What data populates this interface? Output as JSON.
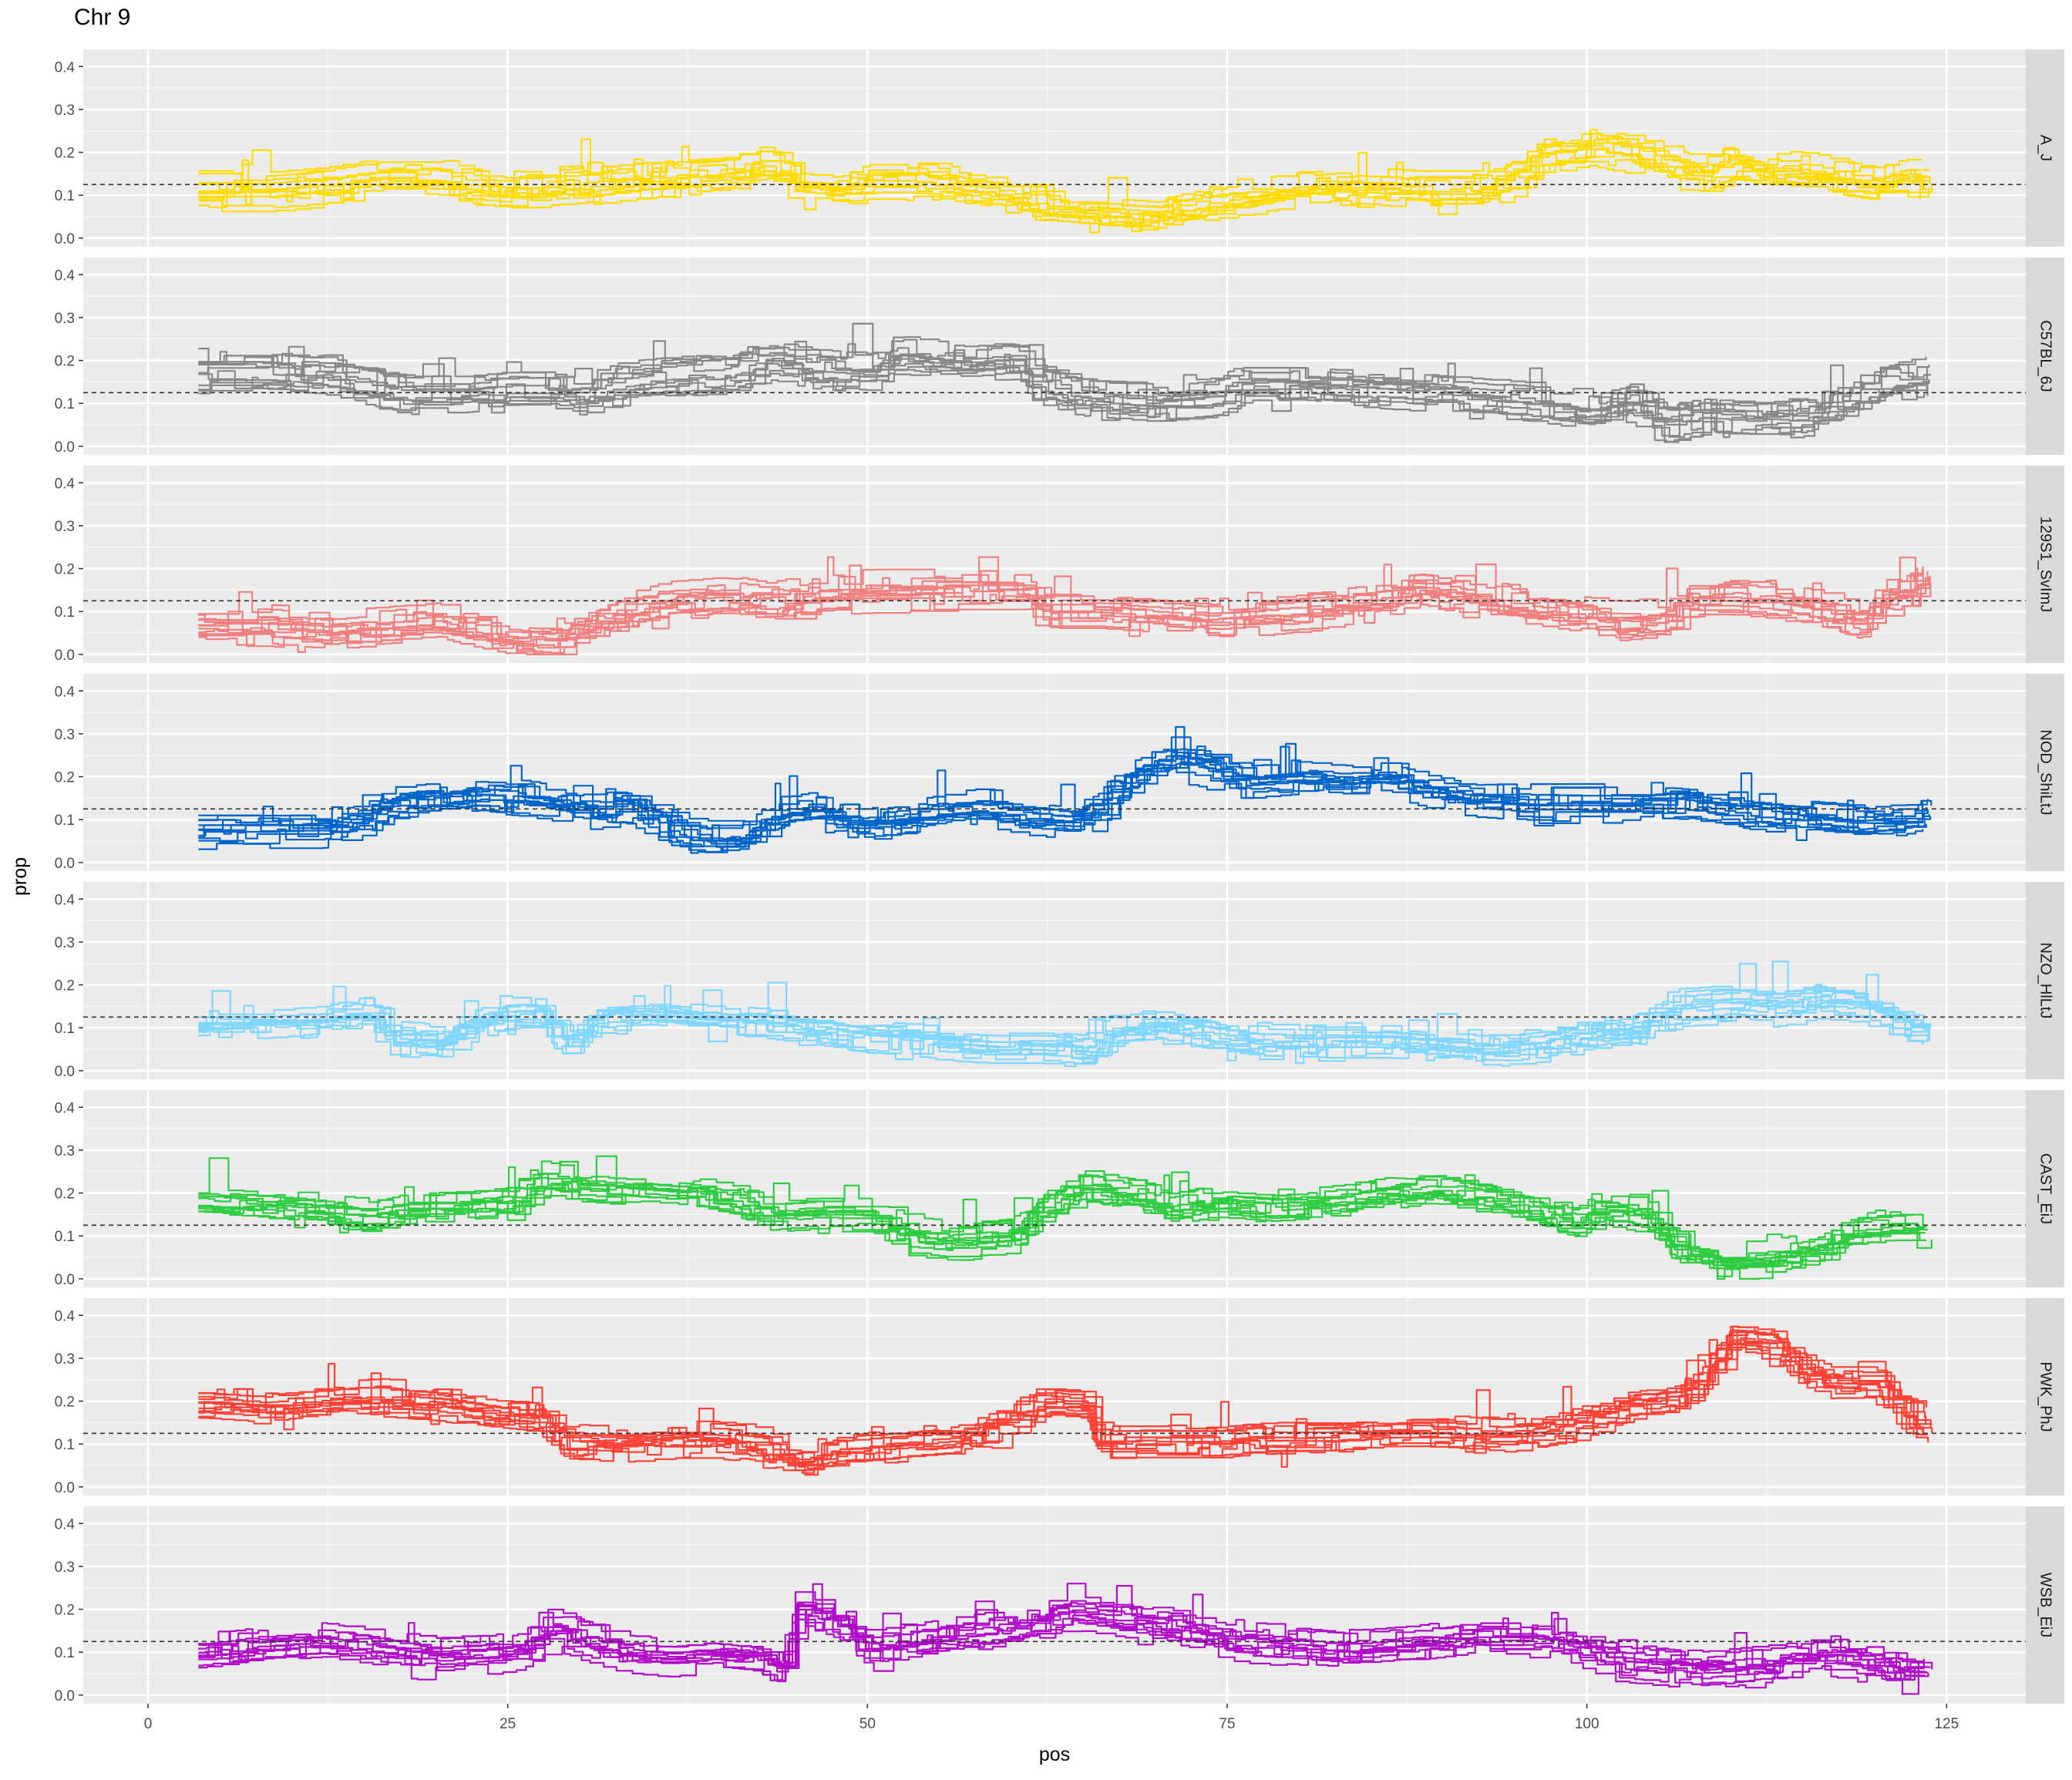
{
  "chart_data": {
    "type": "line",
    "title": "Chr 9",
    "xlabel": "pos",
    "ylabel": "prop",
    "xlim": [
      -4.5,
      130.5
    ],
    "ylim": [
      -0.02,
      0.44
    ],
    "x_ticks": [
      0,
      25,
      50,
      75,
      100,
      125
    ],
    "x_tick_labels": [
      "0",
      "25",
      "50",
      "75",
      "100",
      "125"
    ],
    "y_ticks": [
      0.0,
      0.1,
      0.2,
      0.3,
      0.4
    ],
    "y_tick_labels": [
      "0.0",
      "0.1",
      "0.2",
      "0.3",
      "0.4"
    ],
    "reference_line": 0.125,
    "grid": true,
    "lines_per_panel": 12,
    "panels": [
      {
        "strip": "A_J",
        "color": "#FFDC00",
        "profile": [
          [
            3.5,
            0.11
          ],
          [
            8,
            0.11
          ],
          [
            12,
            0.12
          ],
          [
            16,
            0.14
          ],
          [
            20,
            0.14
          ],
          [
            22,
            0.12
          ],
          [
            26,
            0.11
          ],
          [
            30,
            0.12
          ],
          [
            35,
            0.14
          ],
          [
            40,
            0.15
          ],
          [
            43,
            0.17
          ],
          [
            45,
            0.12
          ],
          [
            48,
            0.11
          ],
          [
            50,
            0.14
          ],
          [
            53,
            0.14
          ],
          [
            56,
            0.12
          ],
          [
            60,
            0.1
          ],
          [
            62,
            0.07
          ],
          [
            66,
            0.06
          ],
          [
            70,
            0.05
          ],
          [
            72,
            0.07
          ],
          [
            76,
            0.09
          ],
          [
            80,
            0.11
          ],
          [
            84,
            0.12
          ],
          [
            88,
            0.11
          ],
          [
            92,
            0.11
          ],
          [
            95,
            0.15
          ],
          [
            97,
            0.2
          ],
          [
            100,
            0.22
          ],
          [
            103,
            0.2
          ],
          [
            106,
            0.17
          ],
          [
            108,
            0.15
          ],
          [
            110,
            0.18
          ],
          [
            113,
            0.16
          ],
          [
            116,
            0.15
          ],
          [
            118,
            0.13
          ],
          [
            120,
            0.12
          ],
          [
            122,
            0.14
          ],
          [
            124,
            0.14
          ]
        ]
      },
      {
        "strip": "C57BL_6J",
        "color": "#888888",
        "profile": [
          [
            3.5,
            0.17
          ],
          [
            8,
            0.17
          ],
          [
            12,
            0.16
          ],
          [
            15,
            0.14
          ],
          [
            18,
            0.12
          ],
          [
            22,
            0.12
          ],
          [
            25,
            0.13
          ],
          [
            28,
            0.13
          ],
          [
            30,
            0.12
          ],
          [
            33,
            0.15
          ],
          [
            36,
            0.16
          ],
          [
            40,
            0.17
          ],
          [
            43,
            0.2
          ],
          [
            46,
            0.18
          ],
          [
            50,
            0.17
          ],
          [
            52,
            0.21
          ],
          [
            54,
            0.2
          ],
          [
            57,
            0.19
          ],
          [
            60,
            0.2
          ],
          [
            62,
            0.14
          ],
          [
            64,
            0.12
          ],
          [
            66,
            0.11
          ],
          [
            70,
            0.1
          ],
          [
            74,
            0.11
          ],
          [
            76,
            0.14
          ],
          [
            80,
            0.14
          ],
          [
            84,
            0.13
          ],
          [
            88,
            0.12
          ],
          [
            92,
            0.11
          ],
          [
            96,
            0.1
          ],
          [
            100,
            0.08
          ],
          [
            103,
            0.1
          ],
          [
            105,
            0.05
          ],
          [
            108,
            0.07
          ],
          [
            112,
            0.06
          ],
          [
            115,
            0.07
          ],
          [
            118,
            0.1
          ],
          [
            121,
            0.14
          ],
          [
            124,
            0.16
          ]
        ]
      },
      {
        "strip": "129S1_SvImJ",
        "color": "#F08080",
        "profile": [
          [
            3.5,
            0.07
          ],
          [
            8,
            0.07
          ],
          [
            12,
            0.06
          ],
          [
            16,
            0.07
          ],
          [
            20,
            0.08
          ],
          [
            22,
            0.06
          ],
          [
            25,
            0.04
          ],
          [
            28,
            0.03
          ],
          [
            30,
            0.06
          ],
          [
            33,
            0.1
          ],
          [
            36,
            0.13
          ],
          [
            40,
            0.14
          ],
          [
            43,
            0.12
          ],
          [
            46,
            0.14
          ],
          [
            50,
            0.15
          ],
          [
            54,
            0.15
          ],
          [
            58,
            0.15
          ],
          [
            61,
            0.15
          ],
          [
            62,
            0.11
          ],
          [
            66,
            0.11
          ],
          [
            70,
            0.1
          ],
          [
            74,
            0.09
          ],
          [
            78,
            0.1
          ],
          [
            82,
            0.11
          ],
          [
            86,
            0.13
          ],
          [
            88,
            0.16
          ],
          [
            91,
            0.14
          ],
          [
            94,
            0.12
          ],
          [
            98,
            0.1
          ],
          [
            102,
            0.08
          ],
          [
            105,
            0.09
          ],
          [
            107,
            0.14
          ],
          [
            110,
            0.14
          ],
          [
            113,
            0.13
          ],
          [
            116,
            0.11
          ],
          [
            119,
            0.08
          ],
          [
            121,
            0.14
          ],
          [
            123,
            0.17
          ],
          [
            124,
            0.2
          ]
        ]
      },
      {
        "strip": "NOD_ShiLtJ",
        "color": "#0064C9",
        "profile": [
          [
            3.5,
            0.08
          ],
          [
            8,
            0.08
          ],
          [
            12,
            0.08
          ],
          [
            15,
            0.1
          ],
          [
            17,
            0.14
          ],
          [
            20,
            0.15
          ],
          [
            23,
            0.16
          ],
          [
            26,
            0.15
          ],
          [
            28,
            0.14
          ],
          [
            31,
            0.12
          ],
          [
            33,
            0.14
          ],
          [
            35,
            0.1
          ],
          [
            38,
            0.06
          ],
          [
            41,
            0.06
          ],
          [
            43,
            0.11
          ],
          [
            46,
            0.13
          ],
          [
            49,
            0.09
          ],
          [
            52,
            0.1
          ],
          [
            55,
            0.12
          ],
          [
            58,
            0.13
          ],
          [
            61,
            0.11
          ],
          [
            64,
            0.1
          ],
          [
            66,
            0.13
          ],
          [
            68,
            0.2
          ],
          [
            71,
            0.24
          ],
          [
            73,
            0.23
          ],
          [
            76,
            0.19
          ],
          [
            80,
            0.2
          ],
          [
            83,
            0.19
          ],
          [
            86,
            0.2
          ],
          [
            89,
            0.17
          ],
          [
            92,
            0.15
          ],
          [
            96,
            0.14
          ],
          [
            100,
            0.14
          ],
          [
            103,
            0.14
          ],
          [
            106,
            0.14
          ],
          [
            109,
            0.13
          ],
          [
            112,
            0.11
          ],
          [
            116,
            0.1
          ],
          [
            119,
            0.09
          ],
          [
            122,
            0.1
          ],
          [
            124,
            0.12
          ]
        ]
      },
      {
        "strip": "NZO_HlLtJ",
        "color": "#7FD6FF",
        "profile": [
          [
            3.5,
            0.11
          ],
          [
            8,
            0.11
          ],
          [
            12,
            0.12
          ],
          [
            15,
            0.14
          ],
          [
            17,
            0.08
          ],
          [
            20,
            0.07
          ],
          [
            22,
            0.1
          ],
          [
            25,
            0.14
          ],
          [
            27,
            0.14
          ],
          [
            29,
            0.07
          ],
          [
            31,
            0.13
          ],
          [
            34,
            0.14
          ],
          [
            38,
            0.13
          ],
          [
            42,
            0.12
          ],
          [
            46,
            0.1
          ],
          [
            50,
            0.08
          ],
          [
            54,
            0.07
          ],
          [
            58,
            0.06
          ],
          [
            62,
            0.06
          ],
          [
            65,
            0.05
          ],
          [
            67,
            0.1
          ],
          [
            70,
            0.11
          ],
          [
            74,
            0.09
          ],
          [
            78,
            0.07
          ],
          [
            82,
            0.07
          ],
          [
            86,
            0.07
          ],
          [
            90,
            0.06
          ],
          [
            94,
            0.05
          ],
          [
            97,
            0.06
          ],
          [
            100,
            0.09
          ],
          [
            103,
            0.1
          ],
          [
            106,
            0.15
          ],
          [
            110,
            0.16
          ],
          [
            113,
            0.15
          ],
          [
            116,
            0.17
          ],
          [
            119,
            0.16
          ],
          [
            122,
            0.12
          ],
          [
            124,
            0.1
          ]
        ]
      },
      {
        "strip": "CAST_EiJ",
        "color": "#2ECC40",
        "profile": [
          [
            3.5,
            0.18
          ],
          [
            8,
            0.17
          ],
          [
            12,
            0.16
          ],
          [
            15,
            0.15
          ],
          [
            18,
            0.17
          ],
          [
            22,
            0.17
          ],
          [
            25,
            0.18
          ],
          [
            27,
            0.24
          ],
          [
            30,
            0.22
          ],
          [
            34,
            0.21
          ],
          [
            38,
            0.2
          ],
          [
            41,
            0.18
          ],
          [
            43,
            0.14
          ],
          [
            46,
            0.15
          ],
          [
            50,
            0.15
          ],
          [
            53,
            0.1
          ],
          [
            56,
            0.09
          ],
          [
            60,
            0.1
          ],
          [
            62,
            0.17
          ],
          [
            65,
            0.22
          ],
          [
            68,
            0.2
          ],
          [
            71,
            0.16
          ],
          [
            74,
            0.18
          ],
          [
            78,
            0.17
          ],
          [
            82,
            0.18
          ],
          [
            86,
            0.2
          ],
          [
            89,
            0.22
          ],
          [
            92,
            0.2
          ],
          [
            96,
            0.17
          ],
          [
            99,
            0.13
          ],
          [
            101,
            0.17
          ],
          [
            104,
            0.15
          ],
          [
            106,
            0.08
          ],
          [
            109,
            0.04
          ],
          [
            113,
            0.05
          ],
          [
            116,
            0.07
          ],
          [
            118,
            0.11
          ],
          [
            121,
            0.12
          ],
          [
            124,
            0.12
          ]
        ]
      },
      {
        "strip": "PWK_PhJ",
        "color": "#FF4136",
        "profile": [
          [
            3.5,
            0.19
          ],
          [
            8,
            0.18
          ],
          [
            12,
            0.19
          ],
          [
            16,
            0.2
          ],
          [
            20,
            0.19
          ],
          [
            24,
            0.17
          ],
          [
            27,
            0.16
          ],
          [
            29,
            0.1
          ],
          [
            33,
            0.09
          ],
          [
            36,
            0.1
          ],
          [
            39,
            0.1
          ],
          [
            42,
            0.09
          ],
          [
            45,
            0.05
          ],
          [
            48,
            0.08
          ],
          [
            52,
            0.09
          ],
          [
            56,
            0.1
          ],
          [
            60,
            0.15
          ],
          [
            62,
            0.19
          ],
          [
            65,
            0.18
          ],
          [
            66,
            0.1
          ],
          [
            70,
            0.1
          ],
          [
            74,
            0.1
          ],
          [
            78,
            0.11
          ],
          [
            82,
            0.11
          ],
          [
            86,
            0.12
          ],
          [
            90,
            0.12
          ],
          [
            94,
            0.11
          ],
          [
            97,
            0.12
          ],
          [
            100,
            0.15
          ],
          [
            103,
            0.19
          ],
          [
            106,
            0.2
          ],
          [
            108,
            0.25
          ],
          [
            110,
            0.34
          ],
          [
            113,
            0.33
          ],
          [
            115,
            0.27
          ],
          [
            117,
            0.24
          ],
          [
            120,
            0.24
          ],
          [
            122,
            0.16
          ],
          [
            124,
            0.13
          ]
        ]
      },
      {
        "strip": "WSB_EiJ",
        "color": "#B10DC9",
        "profile": [
          [
            3.5,
            0.09
          ],
          [
            8,
            0.11
          ],
          [
            12,
            0.12
          ],
          [
            16,
            0.1
          ],
          [
            20,
            0.08
          ],
          [
            24,
            0.09
          ],
          [
            26,
            0.1
          ],
          [
            28,
            0.15
          ],
          [
            30,
            0.12
          ],
          [
            33,
            0.09
          ],
          [
            36,
            0.08
          ],
          [
            39,
            0.09
          ],
          [
            42,
            0.08
          ],
          [
            44,
            0.05
          ],
          [
            45,
            0.2
          ],
          [
            48,
            0.16
          ],
          [
            50,
            0.1
          ],
          [
            54,
            0.12
          ],
          [
            58,
            0.14
          ],
          [
            61,
            0.16
          ],
          [
            64,
            0.19
          ],
          [
            68,
            0.17
          ],
          [
            72,
            0.15
          ],
          [
            76,
            0.12
          ],
          [
            80,
            0.11
          ],
          [
            84,
            0.1
          ],
          [
            88,
            0.11
          ],
          [
            92,
            0.13
          ],
          [
            96,
            0.13
          ],
          [
            99,
            0.11
          ],
          [
            102,
            0.07
          ],
          [
            105,
            0.06
          ],
          [
            108,
            0.05
          ],
          [
            111,
            0.06
          ],
          [
            114,
            0.07
          ],
          [
            117,
            0.09
          ],
          [
            120,
            0.07
          ],
          [
            122,
            0.04
          ],
          [
            124,
            0.04
          ]
        ]
      }
    ]
  }
}
